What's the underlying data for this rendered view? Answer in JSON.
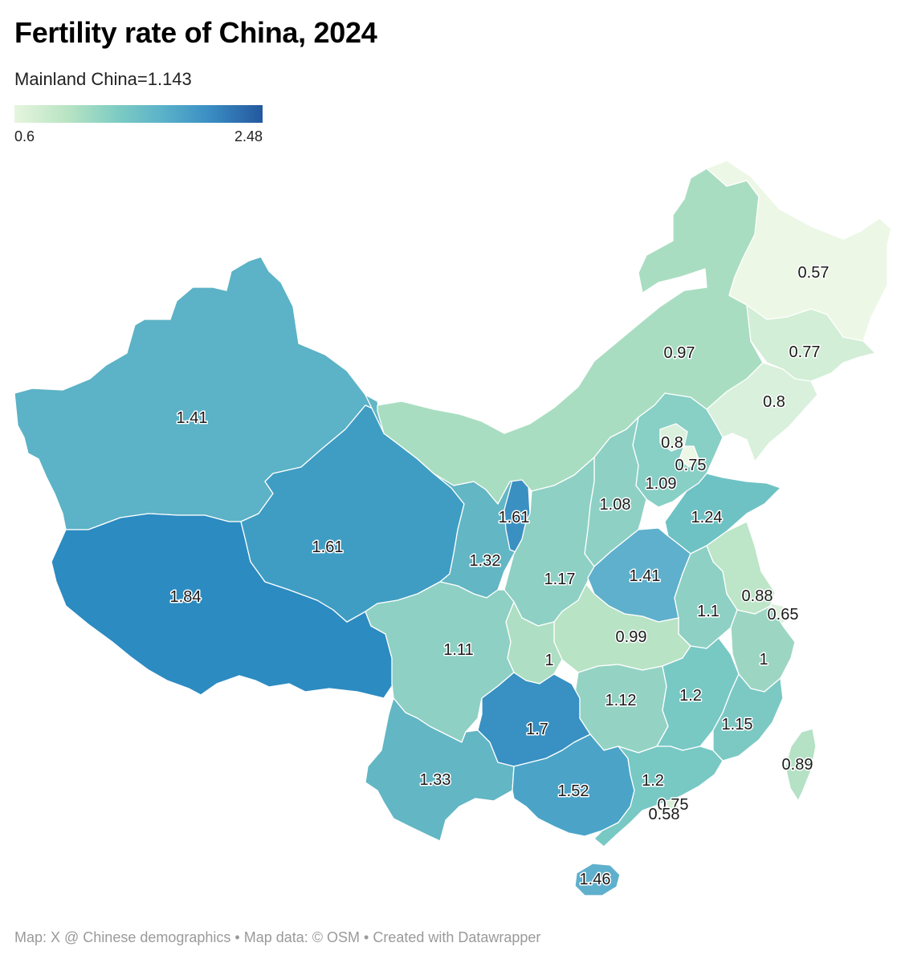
{
  "title": "Fertility rate of China, 2024",
  "subtitle": "Mainland China=1.143",
  "legend": {
    "min": "0.6",
    "max": "2.48",
    "colors": [
      "#e6f5de",
      "#b7e3c3",
      "#7ccbc3",
      "#5ab1c9",
      "#3b8fc4",
      "#24589f"
    ]
  },
  "regions": [
    {
      "id": "xinjiang",
      "value": "1.41"
    },
    {
      "id": "tibet",
      "value": "1.84"
    },
    {
      "id": "qinghai",
      "value": "1.61"
    },
    {
      "id": "gansu",
      "value": "1.32"
    },
    {
      "id": "ningxia",
      "value": "1.61"
    },
    {
      "id": "inner-mongolia",
      "value": "0.97"
    },
    {
      "id": "heilongjiang",
      "value": "0.57"
    },
    {
      "id": "jilin",
      "value": "0.77"
    },
    {
      "id": "liaoning",
      "value": "0.8"
    },
    {
      "id": "beijing",
      "value": "0.8"
    },
    {
      "id": "tianjin",
      "value": "0.75"
    },
    {
      "id": "hebei",
      "value": "1.09"
    },
    {
      "id": "shanxi",
      "value": "1.08"
    },
    {
      "id": "shandong",
      "value": "1.24"
    },
    {
      "id": "henan",
      "value": "1.41"
    },
    {
      "id": "shaanxi",
      "value": "1.17"
    },
    {
      "id": "jiangsu",
      "value": "0.88"
    },
    {
      "id": "shanghai",
      "value": "0.65"
    },
    {
      "id": "anhui",
      "value": "1.1"
    },
    {
      "id": "hubei",
      "value": "0.99"
    },
    {
      "id": "chongqing",
      "value": "1"
    },
    {
      "id": "sichuan",
      "value": "1.11"
    },
    {
      "id": "zhejiang",
      "value": "1"
    },
    {
      "id": "hunan",
      "value": "1.12"
    },
    {
      "id": "jiangxi",
      "value": "1.2"
    },
    {
      "id": "fujian",
      "value": "1.15"
    },
    {
      "id": "guizhou",
      "value": "1.7"
    },
    {
      "id": "yunnan",
      "value": "1.33"
    },
    {
      "id": "guangxi",
      "value": "1.52"
    },
    {
      "id": "guangdong",
      "value": "1.2"
    },
    {
      "id": "hong-kong",
      "value": "0.75"
    },
    {
      "id": "macau",
      "value": "0.58"
    },
    {
      "id": "hainan",
      "value": "1.46"
    },
    {
      "id": "taiwan",
      "value": "0.89"
    }
  ],
  "footer": "Map: X @ Chinese demographics • Map data: © OSM  • Created with Datawrapper"
}
